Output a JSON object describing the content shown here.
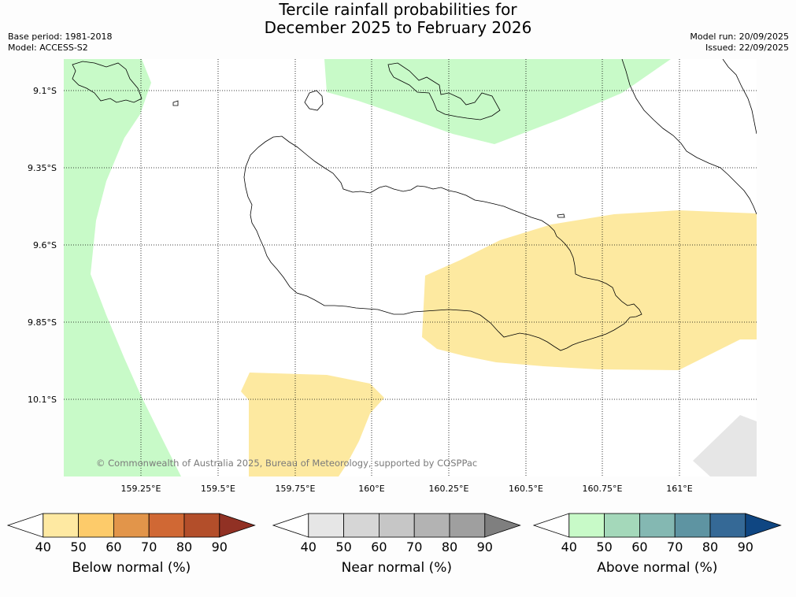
{
  "title": {
    "line1": "Tercile rainfall probabilities for",
    "line2": "December 2025 to February 2026"
  },
  "meta": {
    "base_period": "Base period: 1981-2018",
    "model": "Model: ACCESS-S2",
    "model_run": "Model run: 20/09/2025",
    "issued": "Issued: 22/09/2025"
  },
  "map": {
    "lat_labels": [
      "9.1°S",
      "9.35°S",
      "9.6°S",
      "9.85°S",
      "10.1°S"
    ],
    "lon_labels": [
      "159.25°E",
      "159.5°E",
      "159.75°E",
      "160°E",
      "160.25°E",
      "160.5°E",
      "160.75°E",
      "161°E"
    ],
    "copyright": "© Commonwealth of Australia 2025, Bureau of Meteorology, supported by COSPPac",
    "colors": {
      "above_normal_50": "#c8fac8",
      "below_normal_50": "#fde9a0",
      "near_normal_50": "#e6e6e6"
    }
  },
  "colorbars": [
    {
      "label": "Below normal (%)",
      "ticks": [
        "40",
        "50",
        "60",
        "70",
        "80",
        "90"
      ],
      "colors": [
        "#ffffff",
        "#fee9a2",
        "#fdcb6a",
        "#e2954a",
        "#d06834",
        "#b34e2a",
        "#913124"
      ]
    },
    {
      "label": "Near normal (%)",
      "ticks": [
        "40",
        "50",
        "60",
        "70",
        "80",
        "90"
      ],
      "colors": [
        "#ffffff",
        "#e6e6e6",
        "#d6d6d6",
        "#c6c6c6",
        "#b3b3b3",
        "#9f9f9f",
        "#7f7f7f"
      ]
    },
    {
      "label": "Above normal (%)",
      "ticks": [
        "40",
        "50",
        "60",
        "70",
        "80",
        "90"
      ],
      "colors": [
        "#ffffff",
        "#c8fac8",
        "#a4d8ba",
        "#84b8b2",
        "#5e94a2",
        "#356996",
        "#0f4682"
      ]
    }
  ]
}
